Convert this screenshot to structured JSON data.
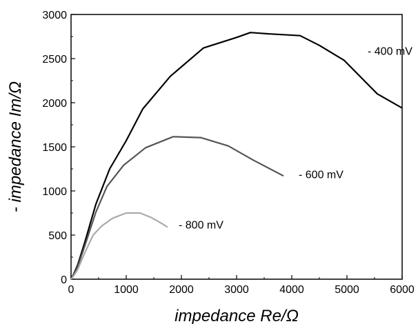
{
  "chart_data": {
    "type": "line",
    "title": "",
    "xlabel": "impedance Re/Ω",
    "ylabel": "- impedance Im/Ω",
    "xlim": [
      0,
      6000
    ],
    "ylim": [
      0,
      3000
    ],
    "xticks": [
      "0",
      "1000",
      "2000",
      "3000",
      "4000",
      "5000",
      "6000"
    ],
    "yticks": [
      "0",
      "500",
      "1000",
      "1500",
      "2000",
      "2500",
      "3000"
    ],
    "grid": false,
    "legend": "inline labels next to curves",
    "series": [
      {
        "name": "- 400 mV",
        "color": "#000000",
        "x": [
          0,
          50,
          120,
          250,
          450,
          700,
          1000,
          1300,
          1800,
          2400,
          3000,
          3250,
          3600,
          4150,
          4500,
          4950,
          5550,
          6000
        ],
        "y": [
          0,
          60,
          160,
          420,
          850,
          1250,
          1570,
          1930,
          2300,
          2620,
          2740,
          2795,
          2780,
          2760,
          2650,
          2480,
          2100,
          1940
        ]
      },
      {
        "name": "- 600 mV",
        "color": "#555555",
        "x": [
          0,
          50,
          120,
          250,
          450,
          650,
          950,
          1350,
          1850,
          2350,
          2850,
          3300,
          3850
        ],
        "y": [
          0,
          50,
          140,
          380,
          760,
          1050,
          1290,
          1490,
          1615,
          1605,
          1510,
          1350,
          1170
        ]
      },
      {
        "name": "- 800 mV",
        "color": "#aaaaaa",
        "x": [
          0,
          50,
          120,
          250,
          400,
          550,
          750,
          1000,
          1250,
          1450,
          1650,
          1750
        ],
        "y": [
          0,
          40,
          110,
          300,
          500,
          600,
          690,
          750,
          750,
          700,
          630,
          590
        ]
      }
    ],
    "annotations": [
      {
        "text": "- 400 mV",
        "series": 0
      },
      {
        "text": "- 600 mV",
        "series": 1
      },
      {
        "text": "- 800 mV",
        "series": 2
      }
    ]
  }
}
